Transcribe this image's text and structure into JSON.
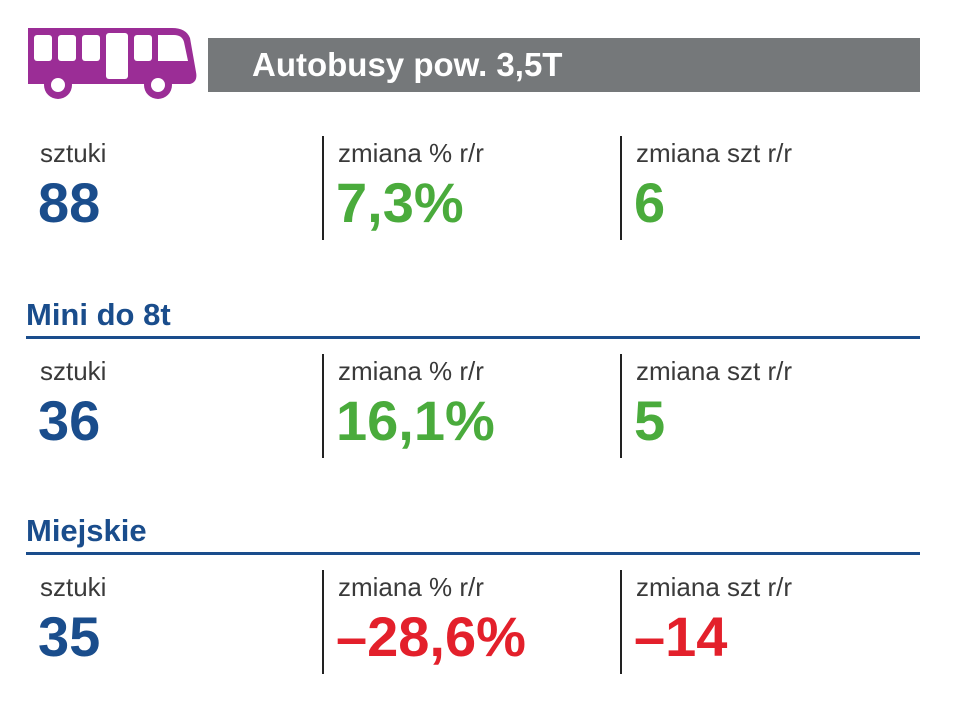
{
  "header": {
    "title": "Autobusy pow. 3,5T",
    "icon": "bus-icon",
    "icon_color": "#9b2d96"
  },
  "colors": {
    "blue": "#1a4d8c",
    "green": "#4aab3c",
    "red": "#e3202b",
    "gray": "#75787a"
  },
  "overall": {
    "units_label": "sztuki",
    "units_value": "88",
    "pct_label": "zmiana % r/r",
    "pct_value": "7,3%",
    "abs_label": "zmiana szt r/r",
    "abs_value": "6"
  },
  "mini": {
    "title": "Mini do 8t",
    "units_label": "sztuki",
    "units_value": "36",
    "pct_label": "zmiana % r/r",
    "pct_value": "16,1%",
    "abs_label": "zmiana szt r/r",
    "abs_value": "5"
  },
  "city": {
    "title": "Miejskie",
    "units_label": "sztuki",
    "units_value": "35",
    "pct_label": "zmiana % r/r",
    "pct_value": "–28,6%",
    "abs_label": "zmiana szt r/r",
    "abs_value": "–14"
  }
}
